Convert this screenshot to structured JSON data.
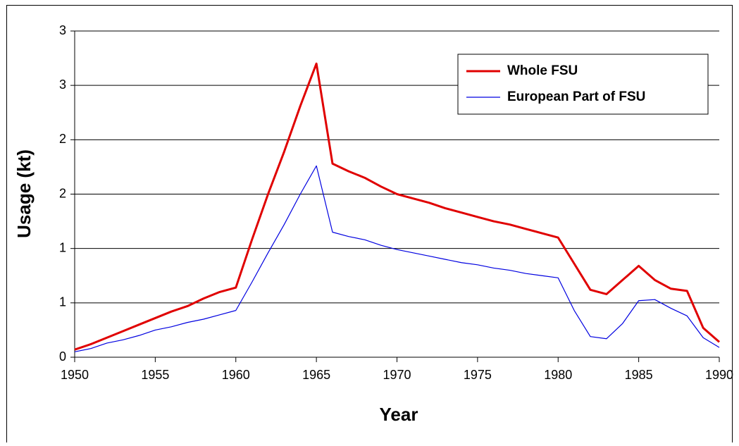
{
  "chart_data": {
    "type": "line",
    "x_label": "Year",
    "y_label": "Usage (kt)",
    "x": [
      1950,
      1951,
      1952,
      1953,
      1954,
      1955,
      1956,
      1957,
      1958,
      1959,
      1960,
      1961,
      1962,
      1963,
      1964,
      1965,
      1966,
      1967,
      1968,
      1969,
      1970,
      1971,
      1972,
      1973,
      1974,
      1975,
      1976,
      1977,
      1978,
      1979,
      1980,
      1981,
      1982,
      1983,
      1984,
      1985,
      1986,
      1987,
      1988,
      1989,
      1990
    ],
    "series": [
      {
        "name": "Whole FSU",
        "color": "#e00000",
        "width": 3,
        "values": [
          0.07,
          0.12,
          0.18,
          0.24,
          0.3,
          0.36,
          0.42,
          0.47,
          0.54,
          0.6,
          0.64,
          1.08,
          1.5,
          1.89,
          2.31,
          2.7,
          1.78,
          1.71,
          1.65,
          1.57,
          1.5,
          1.46,
          1.42,
          1.37,
          1.33,
          1.29,
          1.25,
          1.22,
          1.18,
          1.14,
          1.1,
          0.86,
          0.62,
          0.58,
          0.71,
          0.84,
          0.71,
          0.63,
          0.61,
          0.27,
          0.14
        ]
      },
      {
        "name": "European Part of FSU",
        "color": "#0000e0",
        "width": 1.2,
        "values": [
          0.05,
          0.08,
          0.13,
          0.16,
          0.2,
          0.25,
          0.28,
          0.32,
          0.35,
          0.39,
          0.43,
          0.69,
          0.96,
          1.22,
          1.5,
          1.76,
          1.15,
          1.11,
          1.08,
          1.03,
          0.99,
          0.96,
          0.93,
          0.9,
          0.87,
          0.85,
          0.82,
          0.8,
          0.77,
          0.75,
          0.73,
          0.43,
          0.19,
          0.17,
          0.31,
          0.52,
          0.53,
          0.45,
          0.38,
          0.18,
          0.09
        ]
      }
    ],
    "xlim": [
      1950,
      1990
    ],
    "xticks": [
      1950,
      1955,
      1960,
      1965,
      1970,
      1975,
      1980,
      1985,
      1990
    ],
    "ylim": [
      0,
      3
    ],
    "yticks": [
      0,
      {
        "value": 0.5,
        "label": "1"
      },
      1,
      {
        "value": 1.5,
        "label": "2"
      },
      2,
      {
        "value": 2.5,
        "label": "3"
      },
      3
    ],
    "grid": true,
    "legend": "upper-right"
  }
}
